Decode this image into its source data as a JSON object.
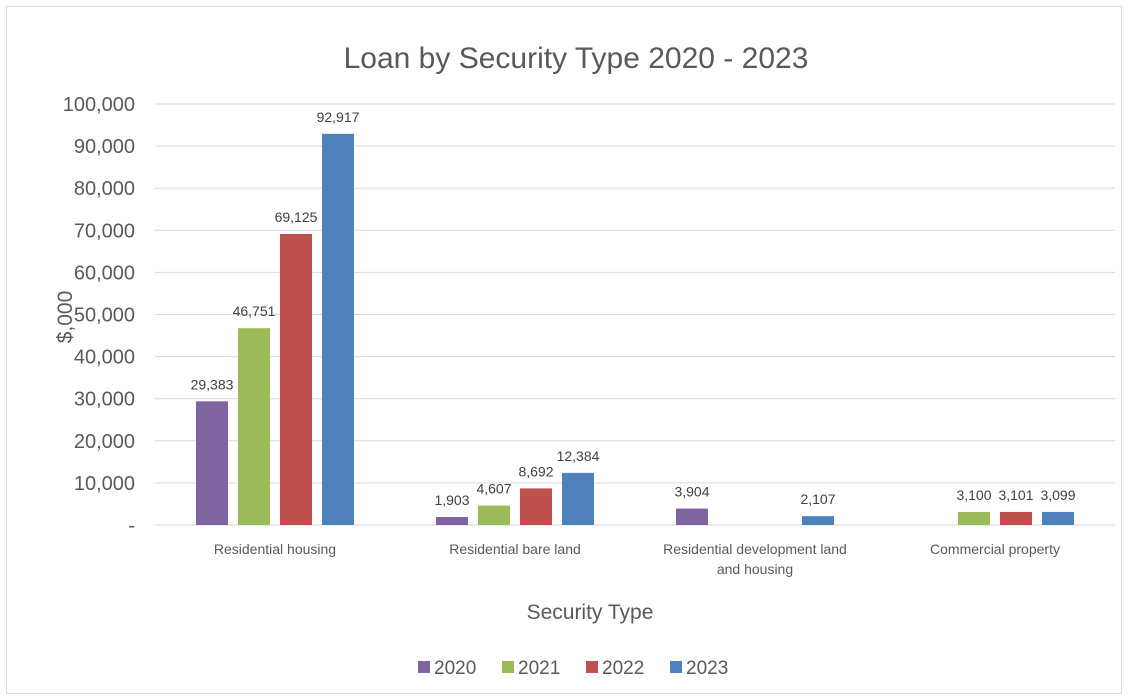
{
  "chart_data": {
    "type": "bar",
    "title": "Loan by Security Type 2020 - 2023",
    "xlabel": "Security Type",
    "ylabel": "$,000",
    "categories": [
      [
        "Residential housing"
      ],
      [
        "Residential bare land"
      ],
      [
        "Residential development land",
        "and housing"
      ],
      [
        "Commercial property"
      ]
    ],
    "series": [
      {
        "name": "2020",
        "color": "#8064a2",
        "values": [
          29383,
          1903,
          3904,
          0
        ]
      },
      {
        "name": "2021",
        "color": "#9bbb59",
        "values": [
          46751,
          4607,
          0,
          3100
        ]
      },
      {
        "name": "2022",
        "color": "#c0504d",
        "values": [
          69125,
          8692,
          0,
          3101
        ]
      },
      {
        "name": "2023",
        "color": "#4f81bd",
        "values": [
          92917,
          12384,
          2107,
          3099
        ]
      }
    ],
    "data_labels": [
      [
        "29,383",
        "1,903",
        "3,904",
        ""
      ],
      [
        "46,751",
        "4,607",
        "",
        "3,100"
      ],
      [
        "69,125",
        "8,692",
        "",
        "3,101"
      ],
      [
        "92,917",
        "12,384",
        "2,107",
        "3,099"
      ]
    ],
    "ylim": [
      0,
      100000
    ],
    "yticks": [
      0,
      10000,
      20000,
      30000,
      40000,
      50000,
      60000,
      70000,
      80000,
      90000,
      100000
    ],
    "ytick_labels": [
      "-",
      "10,000",
      "20,000",
      "30,000",
      "40,000",
      "50,000",
      "60,000",
      "70,000",
      "80,000",
      "90,000",
      "100,000"
    ],
    "grid": true,
    "legend_position": "bottom"
  }
}
